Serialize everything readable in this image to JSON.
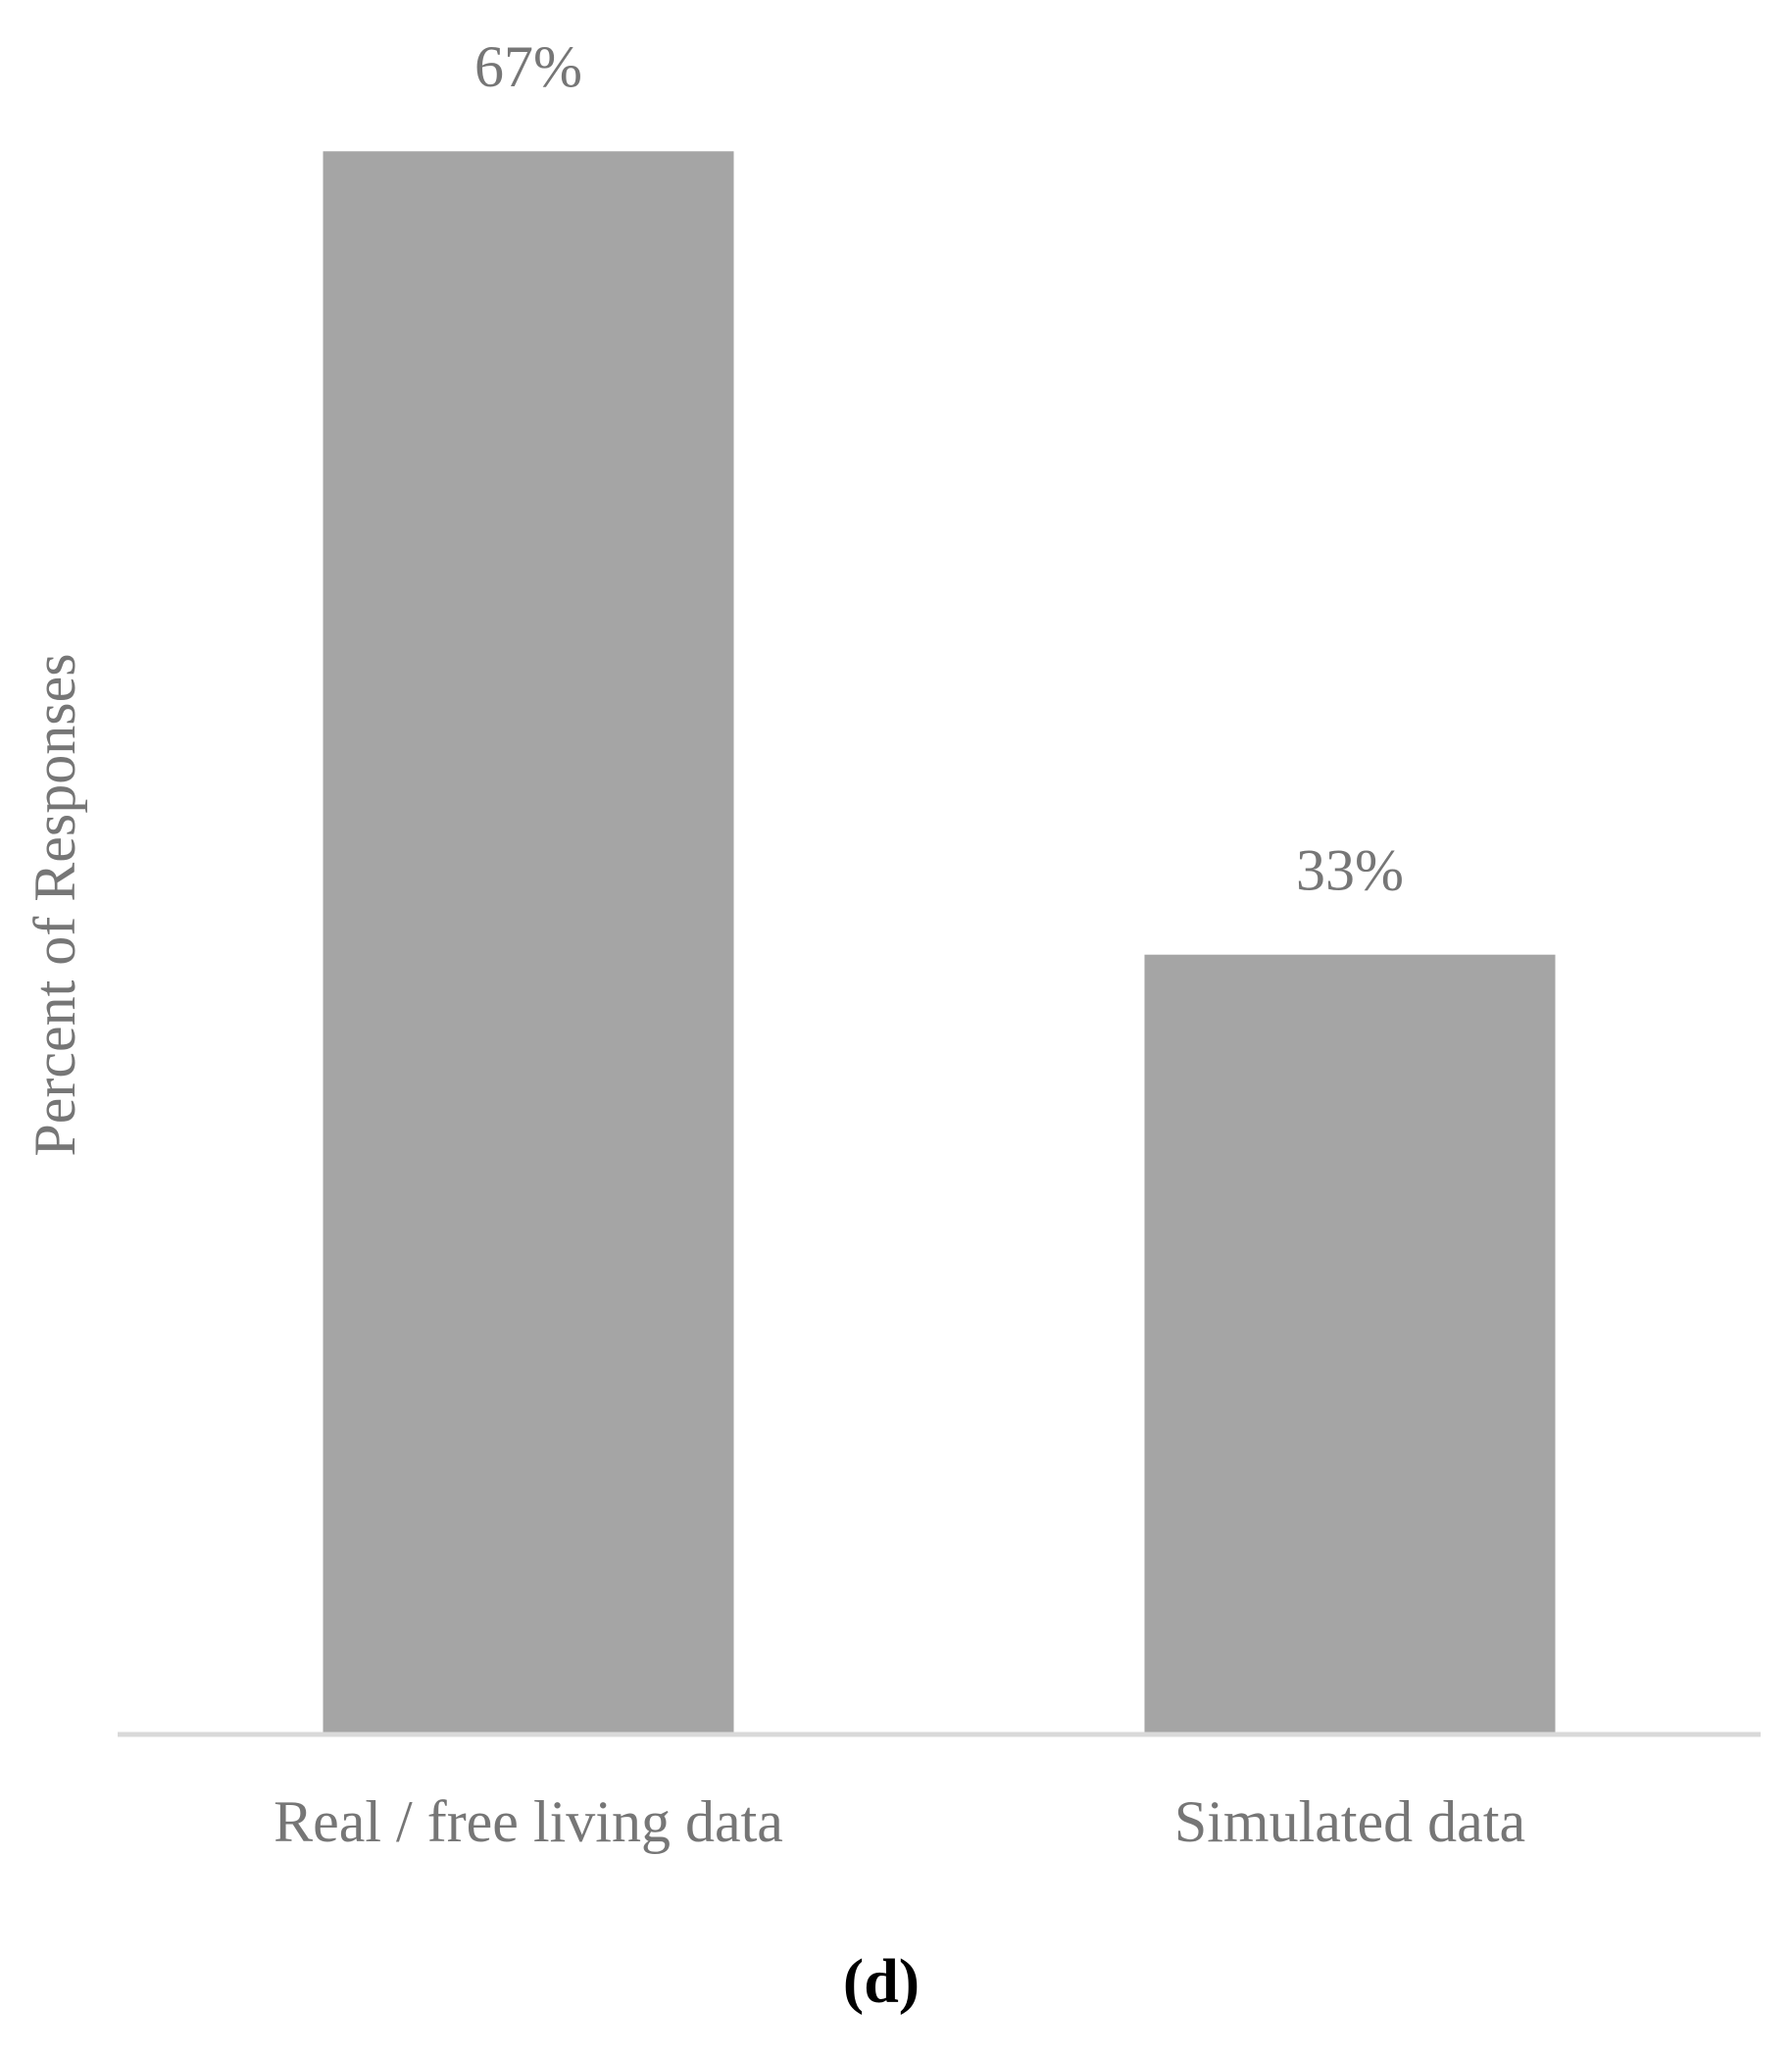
{
  "chart_data": {
    "type": "bar",
    "caption": "(d)",
    "y_label": "Percent of Responses",
    "categories": [
      "Real / free living data",
      "Simulated data"
    ],
    "values": [
      67,
      33
    ],
    "value_labels": [
      "67%",
      "33%"
    ],
    "color": "#a5a5a5",
    "ylim": [
      0,
      70
    ],
    "grid": false
  }
}
